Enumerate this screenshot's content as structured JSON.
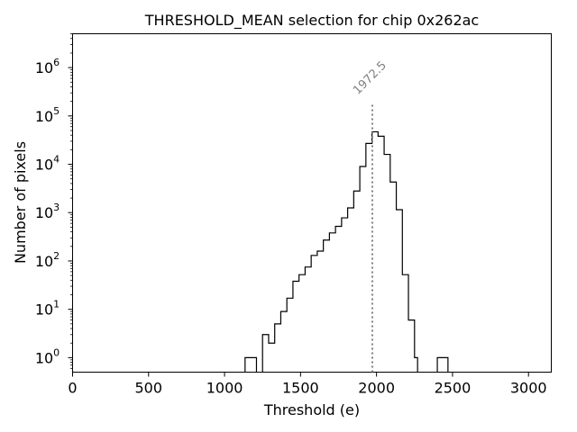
{
  "chart_data": {
    "type": "histogram",
    "title": "THRESHOLD_MEAN selection for chip 0x262ac",
    "xlabel": "Threshold (e)",
    "ylabel": "Number of pixels",
    "xlim": [
      0,
      3150
    ],
    "ylog_range": [
      -0.3,
      6.7
    ],
    "x_ticks": [
      0,
      500,
      1000,
      1500,
      2000,
      2500,
      3000
    ],
    "x_tick_labels": [
      "0",
      "500",
      "1000",
      "1500",
      "2000",
      "2500",
      "3000"
    ],
    "y_ticks": [
      0,
      1,
      2,
      3,
      4,
      5,
      6
    ],
    "y_tick_base": "10",
    "y_tick_exponents": [
      "0",
      "1",
      "2",
      "3",
      "4",
      "5",
      "6"
    ],
    "bins": [
      {
        "x0": 1135,
        "x1": 1210,
        "count": 1
      },
      {
        "x0": 1250,
        "x1": 1290,
        "count": 3
      },
      {
        "x0": 1290,
        "x1": 1330,
        "count": 2
      },
      {
        "x0": 1330,
        "x1": 1370,
        "count": 5
      },
      {
        "x0": 1370,
        "x1": 1410,
        "count": 9
      },
      {
        "x0": 1410,
        "x1": 1450,
        "count": 17
      },
      {
        "x0": 1450,
        "x1": 1490,
        "count": 38
      },
      {
        "x0": 1490,
        "x1": 1530,
        "count": 52
      },
      {
        "x0": 1530,
        "x1": 1570,
        "count": 75
      },
      {
        "x0": 1570,
        "x1": 1610,
        "count": 130
      },
      {
        "x0": 1610,
        "x1": 1650,
        "count": 160
      },
      {
        "x0": 1650,
        "x1": 1690,
        "count": 270
      },
      {
        "x0": 1690,
        "x1": 1730,
        "count": 380
      },
      {
        "x0": 1730,
        "x1": 1770,
        "count": 520
      },
      {
        "x0": 1770,
        "x1": 1810,
        "count": 780
      },
      {
        "x0": 1810,
        "x1": 1850,
        "count": 1250
      },
      {
        "x0": 1850,
        "x1": 1890,
        "count": 2800
      },
      {
        "x0": 1890,
        "x1": 1930,
        "count": 9000
      },
      {
        "x0": 1930,
        "x1": 1970,
        "count": 27000
      },
      {
        "x0": 1970,
        "x1": 2010,
        "count": 47000
      },
      {
        "x0": 2010,
        "x1": 2050,
        "count": 38000
      },
      {
        "x0": 2050,
        "x1": 2090,
        "count": 16000
      },
      {
        "x0": 2090,
        "x1": 2130,
        "count": 4300
      },
      {
        "x0": 2130,
        "x1": 2170,
        "count": 1150
      },
      {
        "x0": 2170,
        "x1": 2210,
        "count": 52
      },
      {
        "x0": 2210,
        "x1": 2250,
        "count": 6
      },
      {
        "x0": 2250,
        "x1": 2270,
        "count": 1
      },
      {
        "x0": 2400,
        "x1": 2470,
        "count": 1
      }
    ],
    "threshold_line": {
      "x": 1972.5,
      "label": "1972.5",
      "ymax_log": 5.25
    }
  }
}
